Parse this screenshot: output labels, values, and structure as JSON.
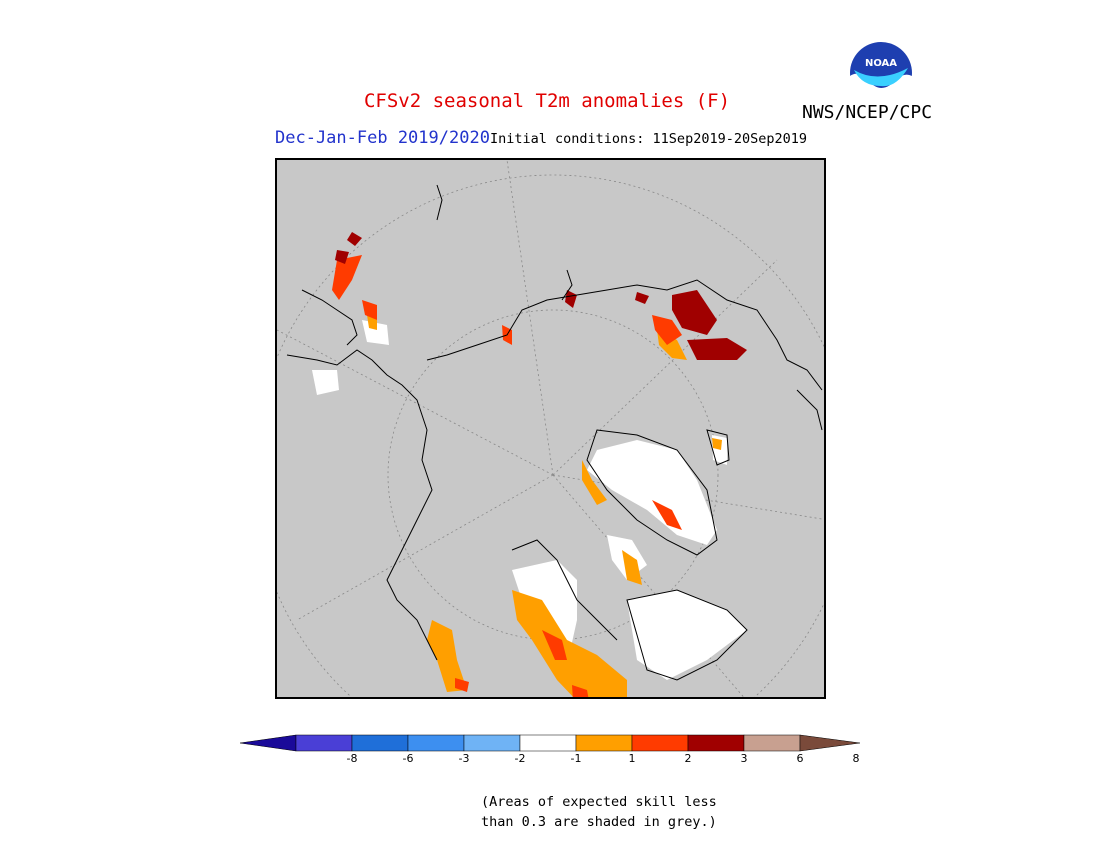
{
  "header": {
    "title": "CFSv2 seasonal T2m anomalies (F)",
    "agency": "NWS/NCEP/CPC",
    "season": "Dec-Jan-Feb 2019/2020",
    "initial_conditions": "Initial conditions: 11Sep2019-20Sep2019",
    "logo_text": "NOAA"
  },
  "colorbar": {
    "ticks": [
      "-8",
      "-6",
      "-3",
      "-2",
      "-1",
      "1",
      "2",
      "3",
      "6",
      "8"
    ],
    "colors": [
      "#1a0a99",
      "#4a3fd6",
      "#1f6fd9",
      "#3d8ff0",
      "#6fb3f5",
      "#ffffff",
      "#ff9f00",
      "#ff3b00",
      "#a00000",
      "#c8a090",
      "#7a4a3a"
    ]
  },
  "note": {
    "line1": "(Areas of expected skill less",
    "line2": "than 0.3 are shaded in grey.)"
  },
  "colors": {
    "background_grey": "#c8c8c8",
    "title_red": "#e00000",
    "season_blue": "#2233cc"
  }
}
